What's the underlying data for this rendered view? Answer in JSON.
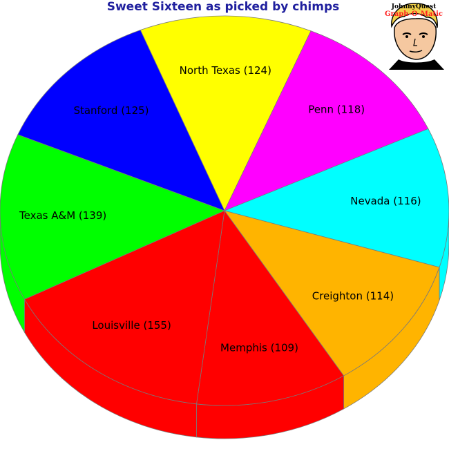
{
  "chart_data": {
    "type": "pie",
    "title": "Sweet Sixteen as picked by chimps",
    "slices": [
      {
        "label": "North Texas",
        "value": 124,
        "display": "North Texas (124)",
        "color": "#ffff00"
      },
      {
        "label": "Penn",
        "value": 118,
        "display": "Penn (118)",
        "color": "#ff00ff"
      },
      {
        "label": "Nevada",
        "value": 116,
        "display": "Nevada (116)",
        "color": "#00ffff"
      },
      {
        "label": "Creighton",
        "value": 114,
        "display": "Creighton (114)",
        "color": "#ffb400"
      },
      {
        "label": "Memphis",
        "value": 109,
        "display": "Memphis (109)",
        "color": "#ff0000"
      },
      {
        "label": "Louisville",
        "value": 155,
        "display": "Louisville (155)",
        "color": "#ff0000"
      },
      {
        "label": "Texas A&M",
        "value": 139,
        "display": "Texas A&M (139)",
        "color": "#00ff00"
      },
      {
        "label": "Stanford",
        "value": 125,
        "display": "Stanford (125)",
        "color": "#0000ff"
      }
    ],
    "style": "3d-tilted"
  },
  "logo": {
    "line1": "JohnnyQuest",
    "line2": "Graph-O-Matic"
  }
}
